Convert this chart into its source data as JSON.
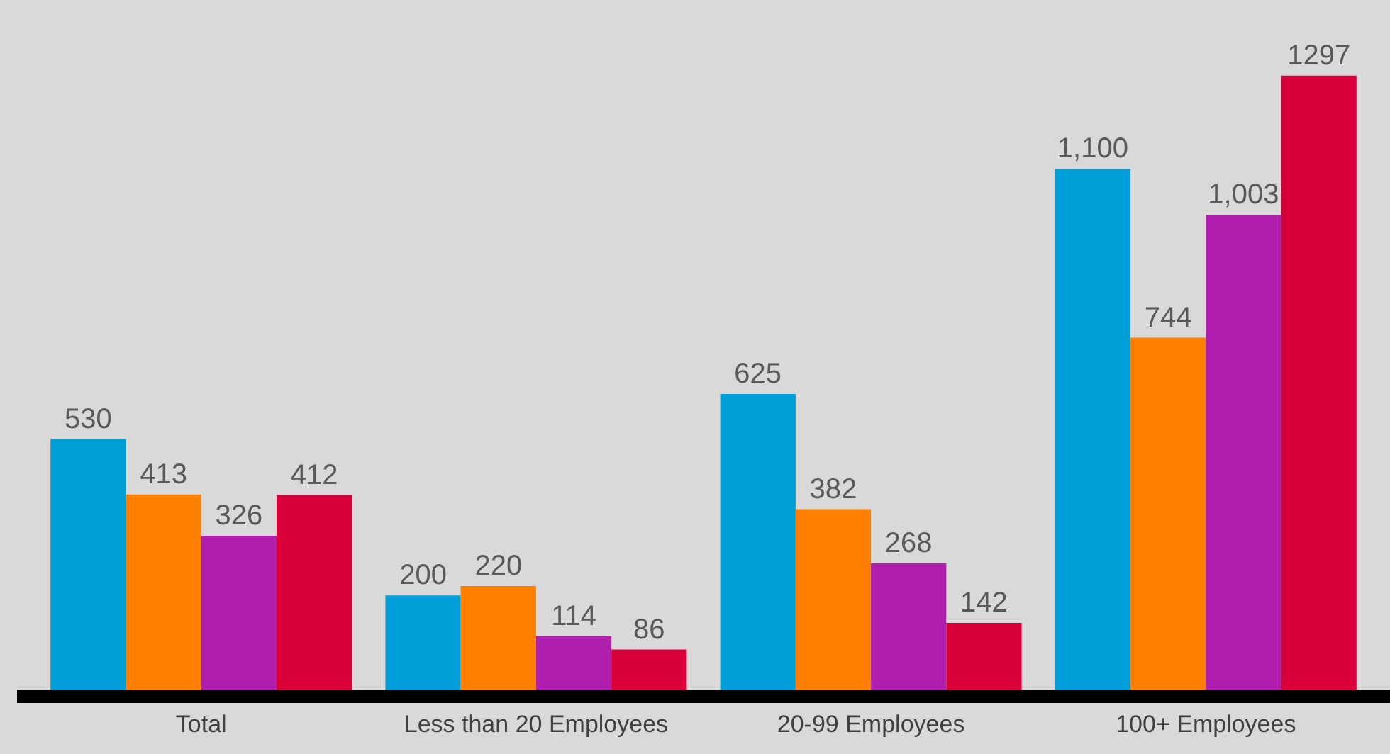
{
  "chart_data": {
    "type": "bar",
    "categories": [
      "Total",
      "Less than 20 Employees",
      "20-99 Employees",
      "100+ Employees"
    ],
    "series": [
      {
        "color": "#009fda",
        "values": [
          530,
          200,
          625,
          1100
        ],
        "value_labels": [
          "530",
          "200",
          "625",
          "1,100"
        ]
      },
      {
        "color": "#ff8000",
        "values": [
          413,
          220,
          382,
          744
        ],
        "value_labels": [
          "413",
          "220",
          "382",
          "744"
        ]
      },
      {
        "color": "#b01fae",
        "values": [
          326,
          114,
          268,
          1003
        ],
        "value_labels": [
          "326",
          "114",
          "268",
          "1,003"
        ]
      },
      {
        "color": "#d9003a",
        "values": [
          412,
          86,
          142,
          1297
        ],
        "value_labels": [
          "412",
          "86",
          "142",
          "1297"
        ]
      }
    ],
    "grid": false
  }
}
